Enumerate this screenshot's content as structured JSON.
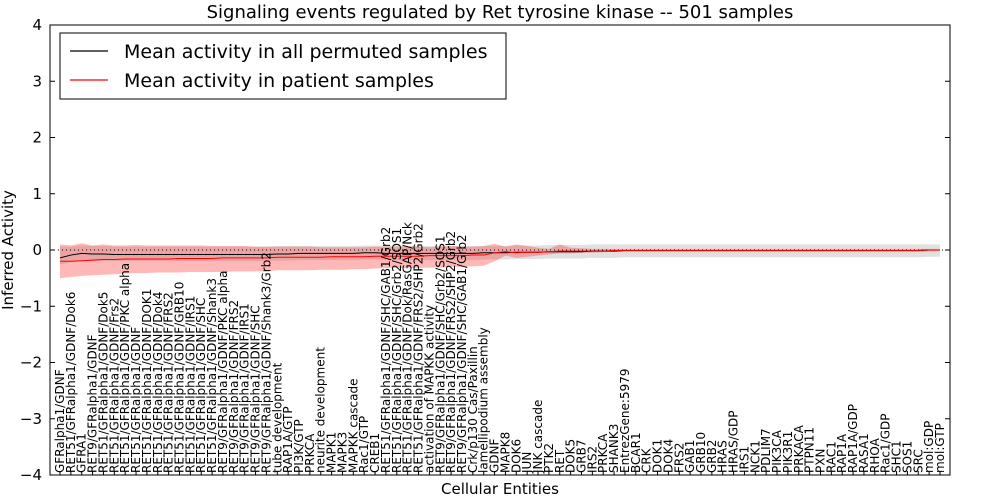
{
  "chart_data": {
    "type": "line",
    "title": "Signaling events regulated by Ret tyrosine kinase -- 501 samples",
    "xlabel": "Cellular Entities",
    "ylabel": "Inferred Activity",
    "ylim": [
      -4,
      4
    ],
    "yticks": [
      -4,
      -3,
      -2,
      -1,
      0,
      1,
      2,
      3,
      4
    ],
    "legend_position": "top-left",
    "categories": [
      "GFRalpha1/GDNF",
      "RET51/GFRalpha1/GDNF/Dok6",
      "GFRA1",
      "RET9/GFRalpha1/GDNF",
      "RET51/GFRalpha1/GDNF/Dok5",
      "RET51/GFRalpha1/GDNF/Frs2",
      "RET51/GFRalpha1/GDNF/PKC alpha",
      "RET51/GFRalpha1/GDNF",
      "RET51/GFRalpha1/GDNF/DOK1",
      "RET51/GFRalpha1/GDNF/Dok4",
      "RET51/GFRalpha1/GDNF/FRS2",
      "RET51/GFRalpha1/GDNF/GRB10",
      "RET51/GFRalpha1/GDNF/IRS1",
      "RET51/GFRalpha1/GDNF/SHC",
      "RET51/GFRalpha1/GDNF/Shank3",
      "RET9/GFRalpha1/GDNF/PKC alpha",
      "RET9/GFRalpha1/GDNF/FRS2",
      "RET9/GFRalpha1/GDNF/IRS1",
      "RET9/GFRalpha1/GDNF/SHC",
      "RET9/GFRalpha1/GDNF/Shank3/Grb2",
      "tube development",
      "RAP1A/GTP",
      "PI3K/GTP",
      "PRKCA",
      "neurite development",
      "MAPK1",
      "MAPK3",
      "MAPKK cascade",
      "Rac1/GTP",
      "CREB1",
      "RET51/GFRalpha1/GDNF/SHC/GAB1/Grb2",
      "RET51/GFRalpha1/GDNF/SHC/Grb2/SOS1",
      "RET51/GFRalpha1/GDNF/Dok/RasGAP/Nck",
      "RET51/GFRalpha1/GDNF/FRS2/SHP2/Grb2",
      "activation of MAPKK activity",
      "RET9/GFRalpha1/GDNF/SHC/Grb2/SOS1",
      "RET9/GFRalpha1/GDNF/FRS2/SHP2/Grb2",
      "RET9/GFRalpha1/GDNF/SHC/GAB1/Grb2",
      "Crk/p130 Cas/Paxillin",
      "lamellipodium assembly",
      "GDNF",
      "MAPK8",
      "DOK6",
      "JUN",
      "JNK cascade",
      "PTK2",
      "RET",
      "DOK5",
      "GRB7",
      "IRS2",
      "PRKCA",
      "SHANK3",
      "EntrezGene:5979",
      "BCAR1",
      "CRK",
      "DOK1",
      "DOK4",
      "FRS2",
      "GAB1",
      "GRB10",
      "GRB2",
      "HRAS",
      "HRAS/GDP",
      "IRS1",
      "NCK1",
      "PDLIM7",
      "PIK3CA",
      "PIK3R1",
      "PRKACA",
      "PTPN11",
      "PXN",
      "RAC1",
      "RAP1A",
      "RAP1A/GDP",
      "RASA1",
      "RHOA",
      "Rac1/GDP",
      "SHC1",
      "SOS1",
      "SRC",
      "mol:GDP",
      "mol:GTP"
    ],
    "series": [
      {
        "name": "Mean activity in all permuted samples",
        "color": "#000000",
        "values": [
          -0.14,
          -0.09,
          -0.06,
          -0.07,
          -0.07,
          -0.08,
          -0.08,
          -0.08,
          -0.08,
          -0.08,
          -0.08,
          -0.08,
          -0.08,
          -0.08,
          -0.08,
          -0.08,
          -0.08,
          -0.08,
          -0.08,
          -0.08,
          -0.07,
          -0.07,
          -0.06,
          -0.06,
          -0.06,
          -0.06,
          -0.06,
          -0.06,
          -0.05,
          -0.05,
          -0.06,
          -0.06,
          -0.06,
          -0.06,
          -0.06,
          -0.06,
          -0.06,
          -0.06,
          -0.06,
          -0.05,
          -0.05,
          -0.05,
          -0.04,
          -0.04,
          -0.04,
          -0.03,
          -0.03,
          -0.03,
          -0.03,
          -0.02,
          -0.02,
          -0.02,
          -0.01,
          -0.01,
          -0.01,
          -0.01,
          -0.01,
          -0.01,
          -0.01,
          -0.01,
          -0.01,
          -0.01,
          -0.01,
          -0.01,
          -0.01,
          -0.01,
          -0.01,
          -0.01,
          -0.01,
          -0.01,
          -0.01,
          -0.01,
          -0.01,
          -0.01,
          -0.01,
          -0.01,
          -0.01,
          -0.01,
          -0.01,
          -0.01,
          0.0,
          0.0
        ],
        "lower": [
          -0.26,
          -0.22,
          -0.2,
          -0.2,
          -0.2,
          -0.2,
          -0.2,
          -0.2,
          -0.2,
          -0.2,
          -0.2,
          -0.2,
          -0.2,
          -0.2,
          -0.2,
          -0.2,
          -0.2,
          -0.2,
          -0.2,
          -0.2,
          -0.19,
          -0.19,
          -0.18,
          -0.18,
          -0.18,
          -0.18,
          -0.18,
          -0.18,
          -0.17,
          -0.17,
          -0.18,
          -0.18,
          -0.18,
          -0.18,
          -0.18,
          -0.18,
          -0.18,
          -0.18,
          -0.18,
          -0.17,
          -0.17,
          -0.17,
          -0.16,
          -0.16,
          -0.16,
          -0.15,
          -0.15,
          -0.15,
          -0.15,
          -0.14,
          -0.14,
          -0.14,
          -0.13,
          -0.13,
          -0.13,
          -0.13,
          -0.13,
          -0.13,
          -0.13,
          -0.13,
          -0.13,
          -0.13,
          -0.13,
          -0.13,
          -0.13,
          -0.13,
          -0.13,
          -0.13,
          -0.13,
          -0.13,
          -0.13,
          -0.13,
          -0.13,
          -0.13,
          -0.13,
          -0.13,
          -0.13,
          -0.13,
          -0.13,
          -0.13,
          -0.12,
          -0.12
        ],
        "upper": [
          0.06,
          0.06,
          0.08,
          0.07,
          0.07,
          0.06,
          0.06,
          0.06,
          0.06,
          0.06,
          0.06,
          0.06,
          0.06,
          0.06,
          0.06,
          0.06,
          0.06,
          0.06,
          0.06,
          0.06,
          0.07,
          0.07,
          0.07,
          0.07,
          0.07,
          0.07,
          0.07,
          0.07,
          0.08,
          0.08,
          0.07,
          0.07,
          0.07,
          0.07,
          0.07,
          0.07,
          0.07,
          0.07,
          0.07,
          0.07,
          0.07,
          0.07,
          0.08,
          0.08,
          0.08,
          0.09,
          0.09,
          0.09,
          0.09,
          0.1,
          0.1,
          0.1,
          0.1,
          0.1,
          0.1,
          0.1,
          0.1,
          0.1,
          0.1,
          0.1,
          0.1,
          0.1,
          0.1,
          0.1,
          0.1,
          0.1,
          0.1,
          0.1,
          0.1,
          0.1,
          0.1,
          0.1,
          0.1,
          0.1,
          0.1,
          0.1,
          0.1,
          0.1,
          0.1,
          0.1,
          0.1,
          0.1
        ]
      },
      {
        "name": "Mean activity in patient samples",
        "color": "#ff0000",
        "values": [
          -0.2,
          -0.2,
          -0.19,
          -0.18,
          -0.17,
          -0.17,
          -0.16,
          -0.16,
          -0.16,
          -0.16,
          -0.16,
          -0.15,
          -0.15,
          -0.15,
          -0.15,
          -0.14,
          -0.14,
          -0.14,
          -0.14,
          -0.14,
          -0.13,
          -0.13,
          -0.13,
          -0.13,
          -0.13,
          -0.12,
          -0.12,
          -0.12,
          -0.12,
          -0.11,
          -0.11,
          -0.11,
          -0.11,
          -0.11,
          -0.1,
          -0.1,
          -0.1,
          -0.1,
          -0.09,
          -0.09,
          -0.05,
          -0.03,
          -0.05,
          -0.04,
          -0.04,
          -0.03,
          -0.02,
          -0.02,
          -0.02,
          -0.02,
          -0.02,
          -0.01,
          -0.01,
          -0.01,
          -0.01,
          -0.01,
          -0.01,
          -0.01,
          -0.01,
          -0.01,
          -0.01,
          -0.01,
          -0.01,
          -0.01,
          -0.01,
          -0.01,
          -0.01,
          -0.01,
          -0.01,
          -0.01,
          -0.01,
          -0.01,
          -0.01,
          -0.01,
          -0.01,
          -0.01,
          -0.01,
          -0.01,
          -0.01,
          -0.01,
          0.0,
          0.0
        ],
        "lower": [
          -0.5,
          -0.48,
          -0.46,
          -0.45,
          -0.44,
          -0.43,
          -0.42,
          -0.41,
          -0.41,
          -0.4,
          -0.4,
          -0.4,
          -0.39,
          -0.39,
          -0.39,
          -0.39,
          -0.38,
          -0.38,
          -0.38,
          -0.38,
          -0.36,
          -0.36,
          -0.36,
          -0.36,
          -0.35,
          -0.35,
          -0.35,
          -0.34,
          -0.34,
          -0.33,
          -0.32,
          -0.32,
          -0.32,
          -0.32,
          -0.31,
          -0.31,
          -0.3,
          -0.3,
          -0.29,
          -0.28,
          -0.2,
          -0.1,
          -0.14,
          -0.12,
          -0.1,
          -0.08,
          -0.06,
          -0.06,
          -0.05,
          -0.05,
          -0.04,
          -0.03,
          -0.03,
          -0.03,
          -0.03,
          -0.03,
          -0.03,
          -0.03,
          -0.03,
          -0.03,
          -0.03,
          -0.03,
          -0.03,
          -0.03,
          -0.03,
          -0.03,
          -0.03,
          -0.03,
          -0.03,
          -0.03,
          -0.03,
          -0.03,
          -0.03,
          -0.03,
          -0.03,
          -0.03,
          -0.03,
          -0.03,
          -0.03,
          -0.03,
          -0.02,
          -0.02
        ],
        "upper": [
          0.1,
          0.08,
          0.12,
          0.08,
          0.1,
          0.08,
          0.08,
          0.09,
          0.08,
          0.08,
          0.08,
          0.08,
          0.08,
          0.08,
          0.07,
          0.07,
          0.07,
          0.07,
          0.06,
          0.06,
          0.06,
          0.06,
          0.06,
          0.06,
          0.05,
          0.05,
          0.05,
          0.05,
          0.05,
          0.06,
          0.06,
          0.06,
          0.06,
          0.06,
          0.05,
          0.06,
          0.07,
          0.06,
          0.06,
          0.07,
          0.11,
          0.06,
          0.1,
          0.07,
          0.04,
          0.02,
          0.1,
          0.04,
          0.03,
          0.02,
          0.02,
          0.02,
          0.02,
          0.02,
          0.02,
          0.02,
          0.02,
          0.02,
          0.02,
          0.02,
          0.02,
          0.02,
          0.02,
          0.02,
          0.02,
          0.02,
          0.02,
          0.02,
          0.02,
          0.02,
          0.02,
          0.02,
          0.02,
          0.02,
          0.02,
          0.02,
          0.02,
          0.02,
          0.02,
          0.02,
          0.02,
          0.02
        ]
      }
    ]
  }
}
